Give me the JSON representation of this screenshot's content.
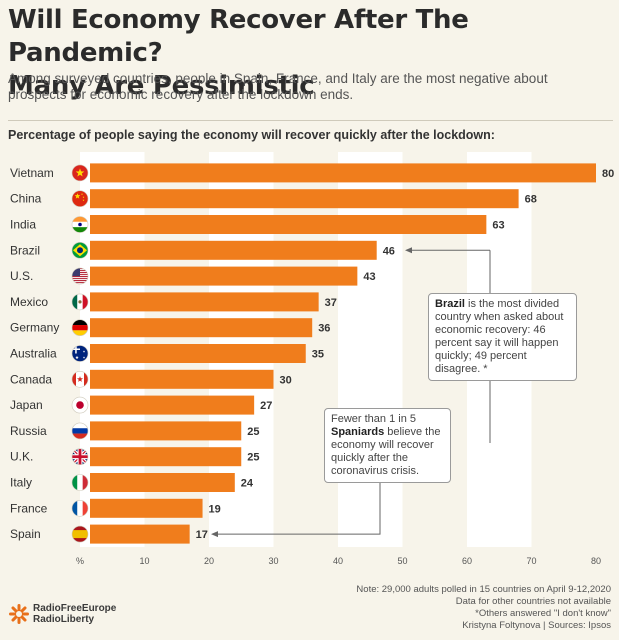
{
  "header": {
    "title_line1": "Will Economy Recover After The Pandemic?",
    "title_line2": "Many Are Pessimistic",
    "subtitle": "Among surveyed countries, people in Spain, France, and Italy are the most negative about prospects for economic recovery after the lockdown ends."
  },
  "chart_heading": "Percentage of people saying the economy will recover quickly after the lockdown:",
  "colors": {
    "bar": "#f07d1c",
    "background": "#f7f4ea",
    "band": "#ffffff",
    "text": "#333333"
  },
  "chart_data": {
    "type": "bar",
    "orientation": "horizontal",
    "title": "Percentage of people saying the economy will recover quickly after the lockdown:",
    "xlabel": "%",
    "ylabel": "",
    "xlim": [
      0,
      80
    ],
    "xticks": [
      10,
      20,
      30,
      40,
      50,
      60,
      70,
      80
    ],
    "x_axis_zero_label": "%",
    "categories": [
      "Vietnam",
      "China",
      "India",
      "Brazil",
      "U.S.",
      "Mexico",
      "Germany",
      "Australia",
      "Canada",
      "Japan",
      "Russia",
      "U.K.",
      "Italy",
      "France",
      "Spain"
    ],
    "values": [
      80,
      68,
      63,
      46,
      43,
      37,
      36,
      35,
      30,
      27,
      25,
      25,
      24,
      19,
      17
    ],
    "flags": [
      "vietnam-flag",
      "china-flag",
      "india-flag",
      "brazil-flag",
      "us-flag",
      "mexico-flag",
      "germany-flag",
      "australia-flag",
      "canada-flag",
      "japan-flag",
      "russia-flag",
      "uk-flag",
      "italy-flag",
      "france-flag",
      "spain-flag"
    ]
  },
  "callouts": {
    "brazil": {
      "bold": "Brazil",
      "text": " is the most divided country when asked about economic recovery: 46 percent say it will happen quickly; 49 percent disagree. *"
    },
    "spain": {
      "before": "Fewer than 1 in 5 ",
      "bold": "Spaniards",
      "after": " believe the economy will recover quickly after the coronavirus crisis."
    }
  },
  "notes": [
    "Note: 29,000 adults polled in 15 countries on April 9-12,2020",
    "Data for other countries not available",
    "*Others answered \"I don't know\"",
    "Kristyna Foltynova | Sources: Ipsos"
  ],
  "logo": {
    "line1": "RadioFreeEurope",
    "line2": "RadioLiberty"
  }
}
